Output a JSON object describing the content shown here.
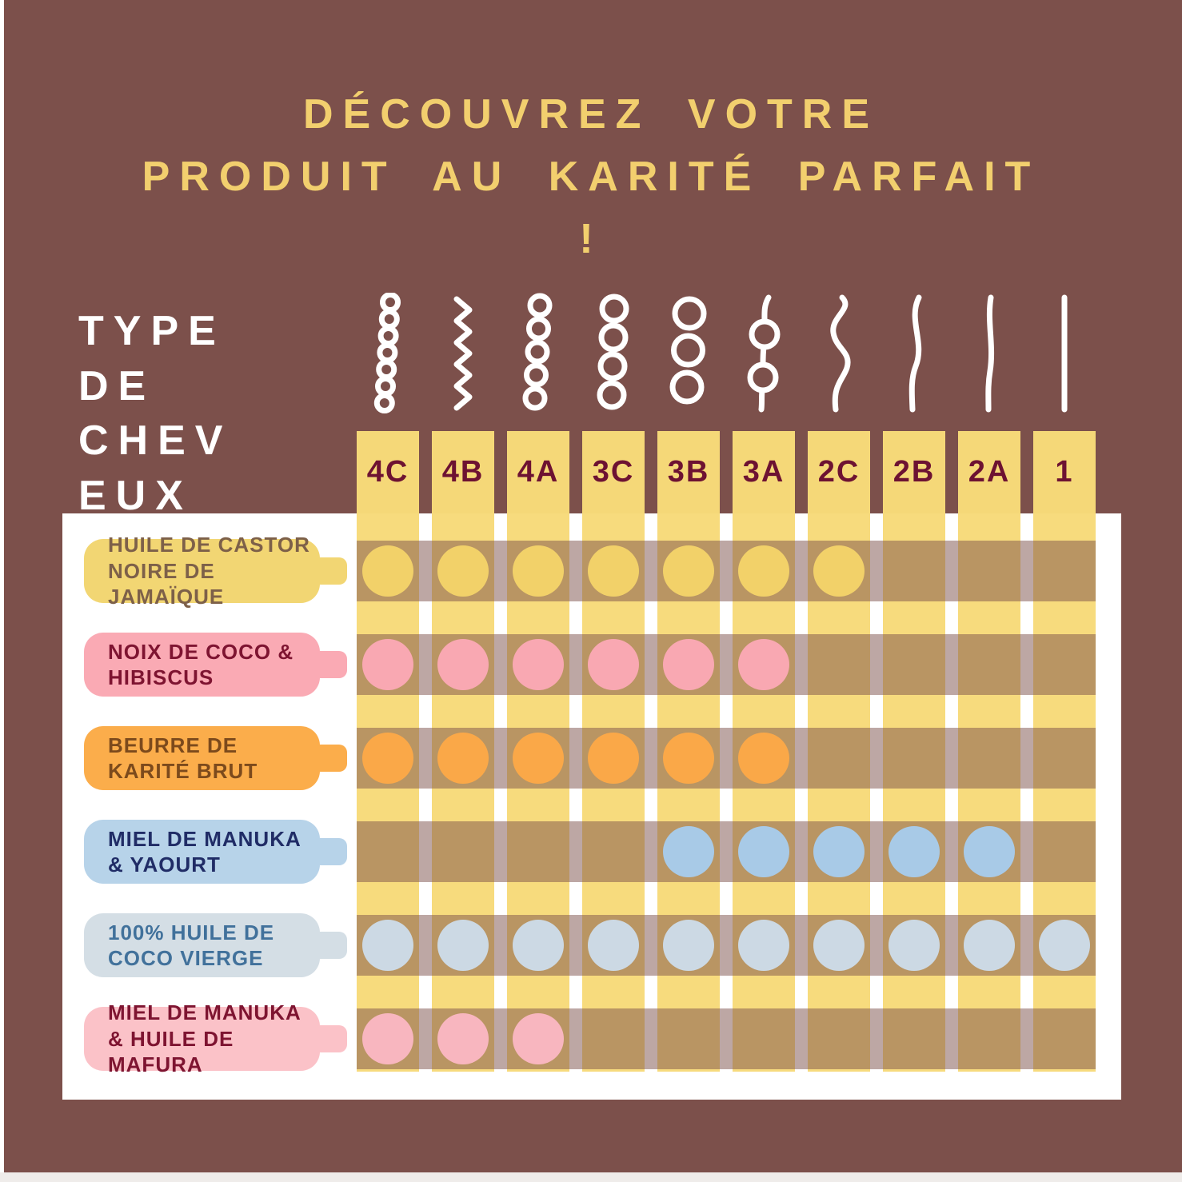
{
  "title": {
    "line1": "DÉCOUVREZ VOTRE",
    "line2": "PRODUIT AU KARITÉ PARFAIT",
    "line3": "!"
  },
  "title_color": "#F2CF6E",
  "background_color": "#7C504B",
  "axis_label_lines": [
    "TYPE",
    "DE",
    "CHEV",
    "EUX"
  ],
  "hair_types": [
    {
      "id": "4C",
      "curl": "coil-tight"
    },
    {
      "id": "4B",
      "curl": "zigzag"
    },
    {
      "id": "4A",
      "curl": "coil-small"
    },
    {
      "id": "3C",
      "curl": "coil-medium"
    },
    {
      "id": "3B",
      "curl": "coil-large"
    },
    {
      "id": "3A",
      "curl": "loops-two"
    },
    {
      "id": "2C",
      "curl": "wave-tight"
    },
    {
      "id": "2B",
      "curl": "wave-s"
    },
    {
      "id": "2A",
      "curl": "wave-slight"
    },
    {
      "id": "1",
      "curl": "straight"
    }
  ],
  "column_color": "#F7DB7D",
  "column_header_text_color": "#6D1232",
  "products": [
    {
      "name_lines": [
        "HUILE DE CASTOR",
        "NOIRE DE JAMAÏQUE"
      ],
      "label_bg": "#F2D673",
      "label_text_color": "#7D6049",
      "dot_color": "#F2D169",
      "suitability": [
        1,
        1,
        1,
        1,
        1,
        1,
        1,
        0,
        0,
        0
      ]
    },
    {
      "name_lines": [
        "NOIX DE COCO &",
        "HIBISCUS"
      ],
      "label_bg": "#FAAAB4",
      "label_text_color": "#7E1431",
      "dot_color": "#F9A8B2",
      "suitability": [
        1,
        1,
        1,
        1,
        1,
        1,
        0,
        0,
        0,
        0
      ]
    },
    {
      "name_lines": [
        "BEURRE DE",
        "KARITÉ BRUT"
      ],
      "label_bg": "#FBAD4B",
      "label_text_color": "#7C4A1C",
      "dot_color": "#FAA848",
      "suitability": [
        1,
        1,
        1,
        1,
        1,
        1,
        0,
        0,
        0,
        0
      ]
    },
    {
      "name_lines": [
        "MIEL DE MANUKA",
        "& YAOURT"
      ],
      "label_bg": "#B7D3E9",
      "label_text_color": "#202C66",
      "dot_color": "#A8CAE7",
      "suitability": [
        0,
        0,
        0,
        0,
        1,
        1,
        1,
        1,
        1,
        0
      ]
    },
    {
      "name_lines": [
        "100% HUILE DE",
        "COCO VIERGE"
      ],
      "label_bg": "#D4DEE5",
      "label_text_color": "#41719B",
      "dot_color": "#CCD9E4",
      "suitability": [
        1,
        1,
        1,
        1,
        1,
        1,
        1,
        1,
        1,
        1
      ]
    },
    {
      "name_lines": [
        "MIEL DE MANUKA",
        "& HUILE DE MAFURA"
      ],
      "label_bg": "#FBC2C8",
      "label_text_color": "#7E1431",
      "dot_color": "#F8B6BF",
      "suitability": [
        1,
        1,
        1,
        0,
        0,
        0,
        0,
        0,
        0,
        0
      ]
    }
  ],
  "chart_data": {
    "type": "table",
    "title": "DÉCOUVREZ VOTRE PRODUIT AU KARITÉ PARFAIT !",
    "xlabel": "TYPE DE CHEVEUX",
    "categories": [
      "4C",
      "4B",
      "4A",
      "3C",
      "3B",
      "3A",
      "2C",
      "2B",
      "2A",
      "1"
    ],
    "series": [
      {
        "name": "HUILE DE CASTOR NOIRE DE JAMAÏQUE",
        "values": [
          1,
          1,
          1,
          1,
          1,
          1,
          1,
          0,
          0,
          0
        ]
      },
      {
        "name": "NOIX DE COCO & HIBISCUS",
        "values": [
          1,
          1,
          1,
          1,
          1,
          1,
          0,
          0,
          0,
          0
        ]
      },
      {
        "name": "BEURRE DE KARITÉ BRUT",
        "values": [
          1,
          1,
          1,
          1,
          1,
          1,
          0,
          0,
          0,
          0
        ]
      },
      {
        "name": "MIEL DE MANUKA & YAOURT",
        "values": [
          0,
          0,
          0,
          0,
          1,
          1,
          1,
          1,
          1,
          0
        ]
      },
      {
        "name": "100% HUILE DE COCO VIERGE",
        "values": [
          1,
          1,
          1,
          1,
          1,
          1,
          1,
          1,
          1,
          1
        ]
      },
      {
        "name": "MIEL DE MANUKA & HUILE DE MAFURA",
        "values": [
          1,
          1,
          1,
          0,
          0,
          0,
          0,
          0,
          0,
          0
        ]
      }
    ],
    "legend_position": "none",
    "grid": false
  }
}
